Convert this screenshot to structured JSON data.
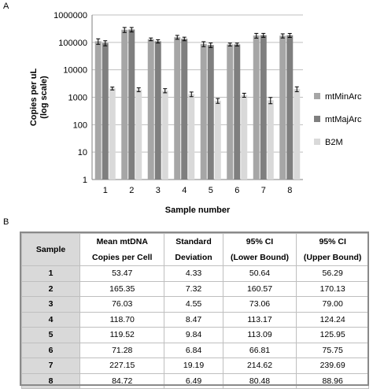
{
  "panels": {
    "a": "A",
    "b": "B"
  },
  "chart_data": {
    "type": "bar",
    "scale": "log",
    "ylabel_lines": [
      "Copies per uL",
      "(log scale)"
    ],
    "xlabel": "Sample number",
    "categories": [
      "1",
      "2",
      "3",
      "4",
      "5",
      "6",
      "7",
      "8"
    ],
    "ylim": [
      1,
      1000000
    ],
    "y_ticks": [
      {
        "value": 1,
        "label": "1"
      },
      {
        "value": 10,
        "label": "10"
      },
      {
        "value": 100,
        "label": "100"
      },
      {
        "value": 1000,
        "label": "1000"
      },
      {
        "value": 10000,
        "label": "10000"
      },
      {
        "value": 100000,
        "label": "100000"
      },
      {
        "value": 1000000,
        "label": "1000000"
      }
    ],
    "grid": true,
    "legend_position": "right",
    "series": [
      {
        "name": "mtMinArc",
        "color": "#a6a6a6",
        "values": [
          110000,
          290000,
          130000,
          155000,
          88000,
          84000,
          178000,
          175000
        ],
        "errors": [
          25000,
          60000,
          15000,
          25000,
          18000,
          10000,
          35000,
          30000
        ]
      },
      {
        "name": "mtMajArc",
        "color": "#7f7f7f",
        "values": [
          95000,
          295000,
          110000,
          135000,
          80000,
          84000,
          183000,
          182000
        ],
        "errors": [
          20000,
          55000,
          15000,
          20000,
          15000,
          10000,
          30000,
          30000
        ]
      },
      {
        "name": "B2M",
        "color": "#d9d9d9",
        "values": [
          2100,
          1900,
          1750,
          1300,
          750,
          1200,
          780,
          2000
        ],
        "errors": [
          250,
          300,
          300,
          250,
          150,
          200,
          200,
          400
        ]
      }
    ]
  },
  "table": {
    "headers": [
      [
        "Sample"
      ],
      [
        "Mean mtDNA",
        "Copies per Cell"
      ],
      [
        "Standard",
        "Deviation"
      ],
      [
        "95% CI",
        "(Lower Bound)"
      ],
      [
        "95% CI",
        "(Upper Bound)"
      ]
    ],
    "rows": [
      [
        "1",
        "53.47",
        "4.33",
        "50.64",
        "56.29"
      ],
      [
        "2",
        "165.35",
        "7.32",
        "160.57",
        "170.13"
      ],
      [
        "3",
        "76.03",
        "4.55",
        "73.06",
        "79.00"
      ],
      [
        "4",
        "118.70",
        "8.47",
        "113.17",
        "124.24"
      ],
      [
        "5",
        "119.52",
        "9.84",
        "113.09",
        "125.95"
      ],
      [
        "6",
        "71.28",
        "6.84",
        "66.81",
        "75.75"
      ],
      [
        "7",
        "227.15",
        "19.19",
        "214.62",
        "239.69"
      ],
      [
        "8",
        "84.72",
        "6.49",
        "80.48",
        "88.96"
      ]
    ]
  }
}
